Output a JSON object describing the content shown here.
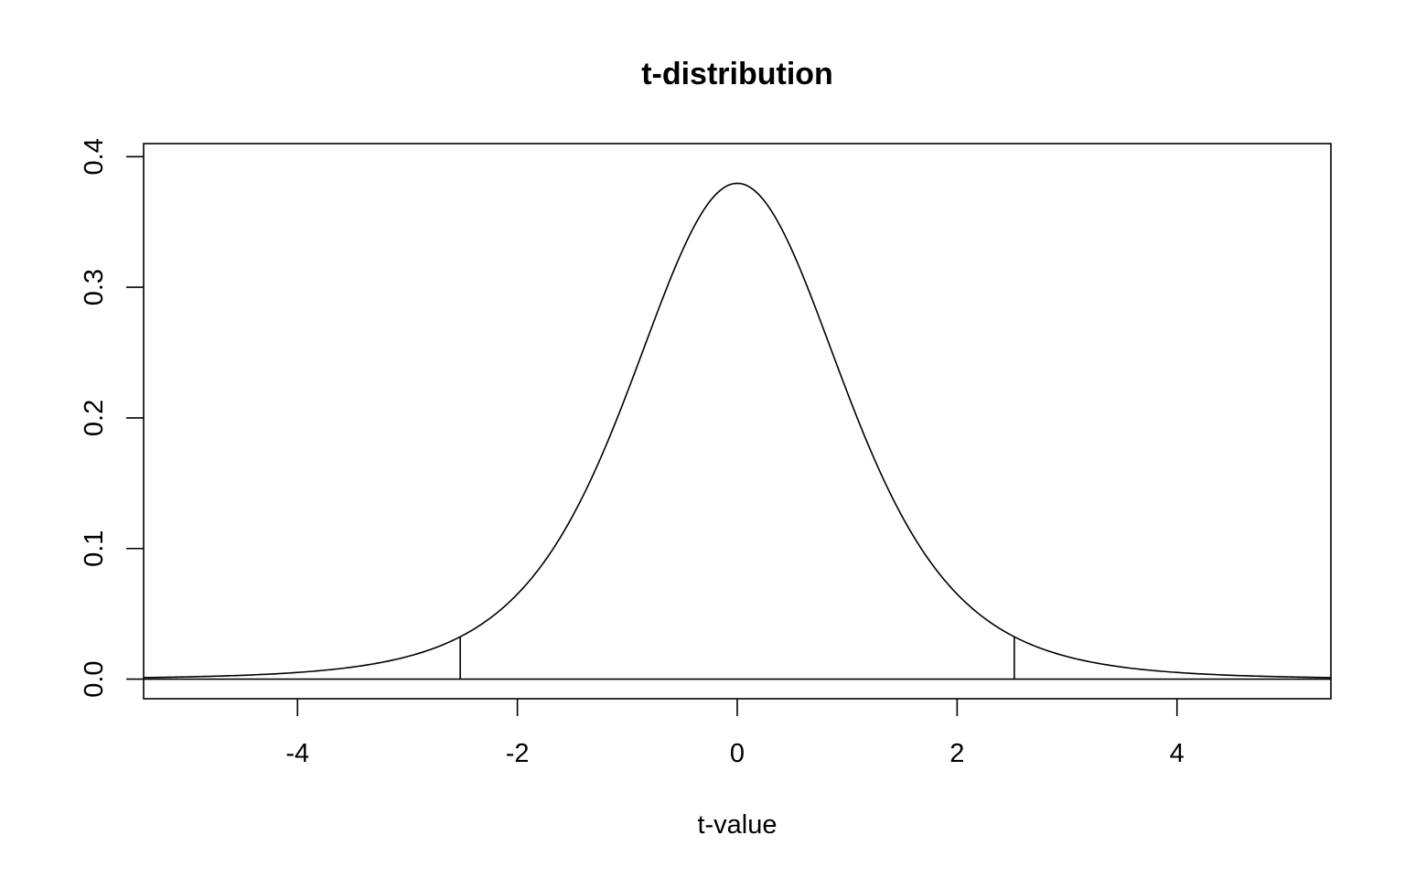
{
  "chart_data": {
    "type": "line",
    "title": "t-distribution",
    "xlabel": "t-value",
    "ylabel": "",
    "xlim": [
      -5.4,
      5.4
    ],
    "ylim": [
      -0.015,
      0.41
    ],
    "x_ticks": [
      -4,
      -2,
      0,
      2,
      4
    ],
    "x_tick_labels": [
      "-4",
      "-2",
      "0",
      "2",
      "4"
    ],
    "y_ticks": [
      0.0,
      0.1,
      0.2,
      0.3,
      0.4
    ],
    "y_tick_labels": [
      "0.0",
      "0.1",
      "0.2",
      "0.3",
      "0.4"
    ],
    "grid": false,
    "series": [
      {
        "x": [
          -5.4,
          -5,
          -4.5,
          -4,
          -3.5,
          -3,
          -2.5,
          -2,
          -1.5,
          -1,
          -0.5,
          0,
          0.5,
          1,
          1.5,
          2,
          2.5,
          3,
          3.5,
          4,
          4.5,
          5,
          5.4
        ],
        "y": [
          0.0002,
          0.0004,
          0.0007,
          0.0013,
          0.0035,
          0.0083,
          0.0218,
          0.0549,
          0.1223,
          0.2346,
          0.3522,
          0.3931,
          0.3522,
          0.2346,
          0.1223,
          0.0549,
          0.0218,
          0.0083,
          0.0035,
          0.0013,
          0.0007,
          0.0004,
          0.0002
        ]
      }
    ],
    "critical_values": [
      -2.52,
      2.52
    ],
    "critical_density": 0.0222
  }
}
